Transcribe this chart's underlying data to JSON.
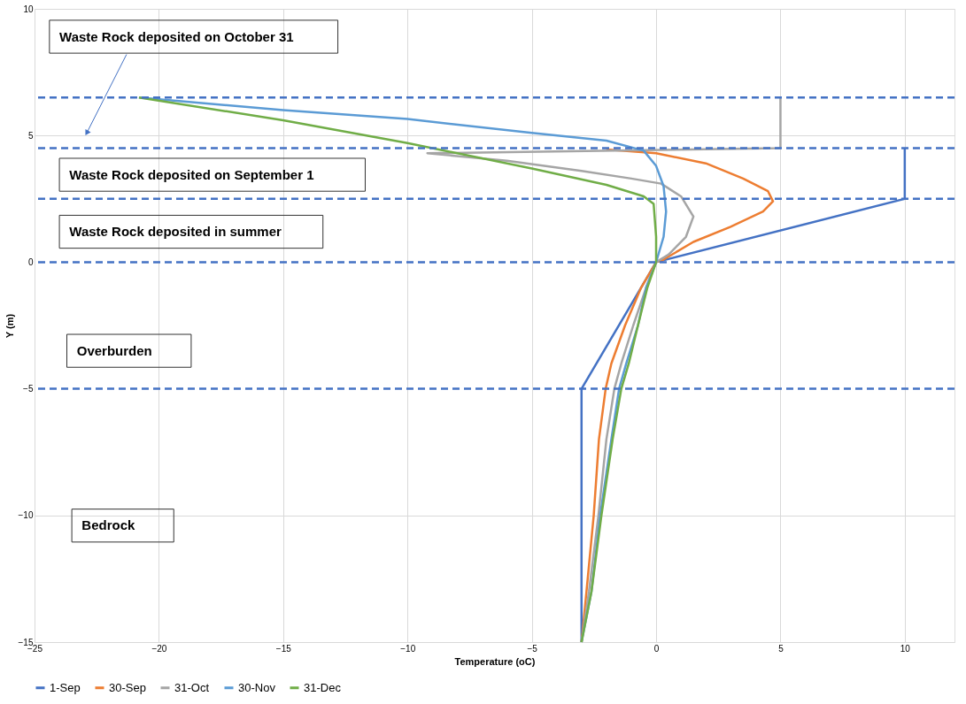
{
  "chart_data": {
    "type": "line",
    "xlabel": "Temperature (oC)",
    "ylabel": "Y (m)",
    "xlim": [
      -25,
      12
    ],
    "ylim": [
      -15,
      10
    ],
    "xticks": [
      -25,
      -20,
      -15,
      -10,
      -5,
      0,
      5,
      10
    ],
    "yticks": [
      -15,
      -10,
      -5,
      0,
      5,
      10
    ],
    "grid": true,
    "legend": "bottom",
    "line_style": "solid",
    "marker": "none",
    "series": [
      {
        "name": "1-Sep",
        "color": "#4472c4",
        "x": [
          -3,
          -3,
          0,
          10,
          10
        ],
        "values": [
          -15,
          -5,
          0,
          2.5,
          4.5
        ]
      },
      {
        "name": "30-Sep",
        "color": "#ed7d31",
        "x": [
          -2,
          0,
          2,
          3.5,
          4.5,
          4.7,
          4.3,
          3,
          1.5,
          0.3,
          0,
          -0.6,
          -1.25,
          -1.8,
          -2.03,
          -2.3,
          -2.51,
          -2.8,
          -3
        ],
        "values": [
          4.45,
          4.3,
          3.9,
          3.3,
          2.8,
          2.4,
          2.0,
          1.4,
          0.8,
          0.1,
          0,
          -1,
          -2.5,
          -4,
          -5,
          -7,
          -10,
          -13,
          -15
        ]
      },
      {
        "name": "31-Oct",
        "color": "#a5a5a5",
        "x": [
          5,
          5,
          -9.2,
          -6,
          -3,
          -1,
          0.2,
          1,
          1.5,
          1.2,
          0.5,
          0,
          -0.4,
          -0.92,
          -1.4,
          -1.68,
          -2.0,
          -2.32,
          -2.7,
          -3
        ],
        "values": [
          6.5,
          4.5,
          4.3,
          4.0,
          3.6,
          3.3,
          3.1,
          2.6,
          1.8,
          1.0,
          0.3,
          0,
          -1,
          -2.5,
          -4,
          -5,
          -7,
          -10,
          -13,
          -15
        ]
      },
      {
        "name": "30-Nov",
        "color": "#5b9bd5",
        "x": [
          -20.8,
          -15,
          -10,
          -5,
          -2,
          -0.5,
          0,
          0.3,
          0.4,
          0.3,
          0,
          -0.4,
          -0.73,
          -1.2,
          -1.49,
          -1.8,
          -2.25,
          -2.6,
          -3
        ],
        "values": [
          6.5,
          6.0,
          5.65,
          5.1,
          4.8,
          4.4,
          3.8,
          3.0,
          2.0,
          1.0,
          0,
          -1,
          -2.5,
          -4,
          -5,
          -7,
          -10,
          -13,
          -15
        ]
      },
      {
        "name": "31-Dec",
        "color": "#70ad47",
        "x": [
          -20.8,
          -15,
          -10,
          -5,
          -2,
          -0.5,
          -0.1,
          0,
          0,
          -0.35,
          -0.73,
          -1.1,
          -1.4,
          -1.75,
          -2.2,
          -2.6,
          -3
        ],
        "values": [
          6.5,
          5.6,
          4.7,
          3.7,
          3.05,
          2.6,
          2.3,
          1.0,
          0,
          -1,
          -2.5,
          -4,
          -5,
          -7,
          -10,
          -13,
          -15
        ]
      }
    ],
    "ref_lines": [
      {
        "axis": "y",
        "value": 6.5,
        "color": "#4472c4",
        "line_style": "dashed"
      },
      {
        "axis": "y",
        "value": 4.5,
        "color": "#4472c4",
        "line_style": "dashed"
      },
      {
        "axis": "y",
        "value": 2.5,
        "color": "#4472c4",
        "line_style": "dashed"
      },
      {
        "axis": "y",
        "value": 0,
        "color": "#4472c4",
        "line_style": "dashed"
      },
      {
        "axis": "y",
        "value": -5,
        "color": "#4472c4",
        "line_style": "dashed"
      }
    ],
    "annotations": [
      "Waste Rock deposited on October 31",
      "Waste Rock deposited on September 1",
      "Waste Rock deposited in summer",
      "Overburden",
      "Bedrock"
    ]
  }
}
